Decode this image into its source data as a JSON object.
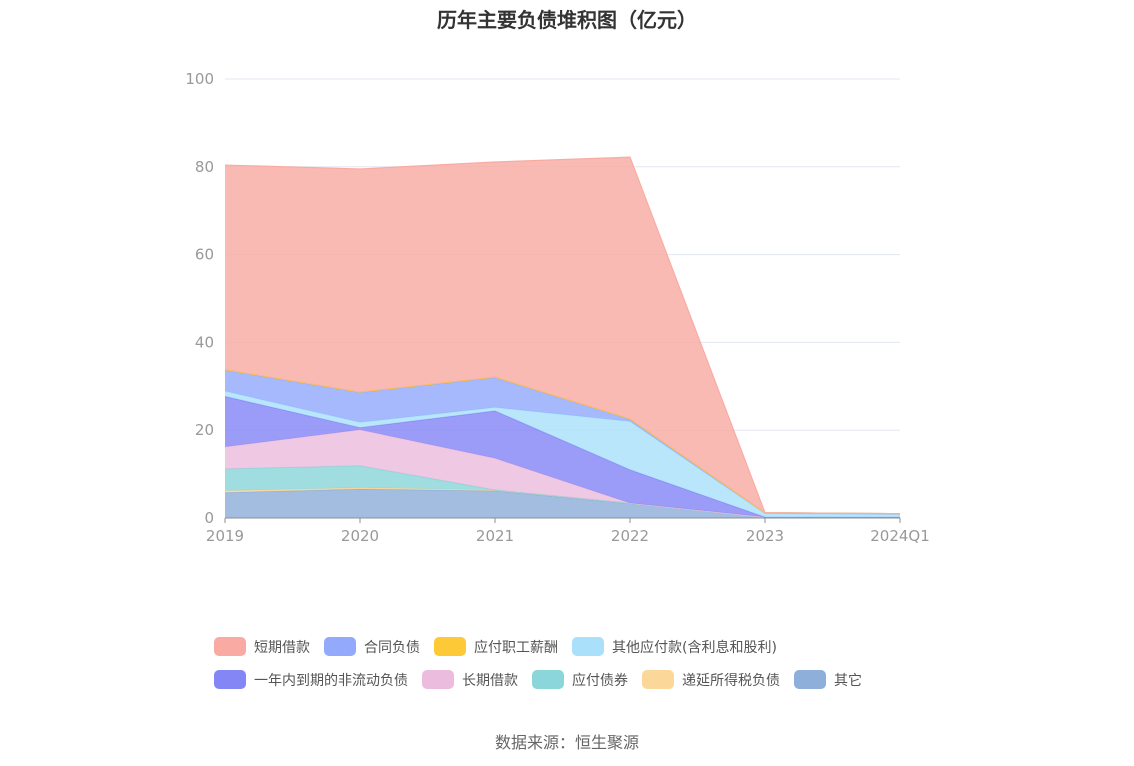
{
  "title": "历年主要负债堆积图（亿元）",
  "source": "数据来源：恒生聚源",
  "chart_data": {
    "type": "area",
    "stacked": true,
    "title": "历年主要负债堆积图（亿元）",
    "categories": [
      "2019",
      "2020",
      "2021",
      "2022",
      "2023",
      "2024Q1"
    ],
    "ylim": [
      0,
      100
    ],
    "yticks": [
      "0",
      "20",
      "40",
      "60",
      "80",
      "100"
    ],
    "grid": true,
    "legend_position": "bottom",
    "series": [
      {
        "name": "其它",
        "color": "#8eafd9",
        "values": [
          5.8,
          6.6,
          6.2,
          3.3,
          0.2,
          0.2
        ]
      },
      {
        "name": "递延所得税负债",
        "color": "#fbd79a",
        "values": [
          0.4,
          0.3,
          0.2,
          0.1,
          0.0,
          0.0
        ]
      },
      {
        "name": "应付债券",
        "color": "#8ad6da",
        "values": [
          5.0,
          5.0,
          0.0,
          0.0,
          0.0,
          0.0
        ]
      },
      {
        "name": "长期借款",
        "color": "#ebbcdd",
        "values": [
          5.0,
          8.2,
          7.2,
          0.0,
          0.0,
          0.0
        ]
      },
      {
        "name": "一年内到期的非流动负债",
        "color": "#8586f6",
        "values": [
          11.5,
          0.5,
          10.8,
          7.6,
          0.0,
          0.0
        ]
      },
      {
        "name": "其他应付款(含利息和股利)",
        "color": "#abe0fb",
        "values": [
          1.2,
          1.2,
          0.8,
          11.0,
          0.8,
          0.6
        ]
      },
      {
        "name": "合同负债",
        "color": "#93aafc",
        "values": [
          4.8,
          6.8,
          6.8,
          0.5,
          0.2,
          0.2
        ]
      },
      {
        "name": "应付职工薪酬",
        "color": "#fdc937",
        "values": [
          0.1,
          0.1,
          0.1,
          0.1,
          0.0,
          0.0
        ]
      },
      {
        "name": "短期借款",
        "color": "#f9aba3",
        "values": [
          46.6,
          50.8,
          49.0,
          59.6,
          0.0,
          0.0
        ]
      }
    ]
  },
  "legend": {
    "row1": [
      {
        "name": "短期借款",
        "color": "#f9aba3"
      },
      {
        "name": "合同负债",
        "color": "#93aafc"
      },
      {
        "name": "应付职工薪酬",
        "color": "#fdc937"
      },
      {
        "name": "其他应付款(含利息和股利)",
        "color": "#abe0fb"
      }
    ],
    "row2": [
      {
        "name": "一年内到期的非流动负债",
        "color": "#8586f6"
      },
      {
        "name": "长期借款",
        "color": "#ebbcdd"
      },
      {
        "name": "应付债券",
        "color": "#8ad6da"
      },
      {
        "name": "递延所得税负债",
        "color": "#fbd79a"
      },
      {
        "name": "其它",
        "color": "#8eafd9"
      }
    ]
  }
}
